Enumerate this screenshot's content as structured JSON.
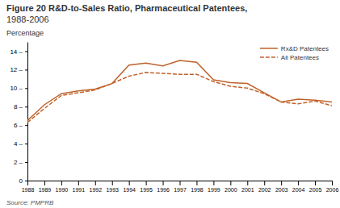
{
  "chart_data": {
    "type": "line",
    "title": "Figure 20 R&D-to-Sales Ratio, Pharmaceutical Patentees,",
    "subtitle": "1988-2006",
    "y_label": "Percentage",
    "annotations": [
      "Source: PMPRB"
    ],
    "x": [
      1988,
      1989,
      1990,
      1991,
      1992,
      1993,
      1994,
      1995,
      1996,
      1997,
      1998,
      1999,
      2000,
      2001,
      2002,
      2003,
      2004,
      2005,
      2006
    ],
    "series": [
      {
        "name": "Rx&D Patentees",
        "color": "#c0622a",
        "line_style": "solid",
        "values": [
          6.5,
          8.2,
          9.4,
          9.7,
          9.9,
          10.5,
          12.5,
          12.7,
          12.4,
          13.0,
          12.8,
          10.9,
          10.6,
          10.5,
          9.5,
          8.5,
          8.8,
          8.7,
          8.5
        ]
      },
      {
        "name": "All Patentees",
        "color": "#c0622a",
        "line_style": "dashed",
        "values": [
          6.3,
          7.8,
          9.2,
          9.5,
          9.8,
          10.5,
          11.3,
          11.7,
          11.6,
          11.5,
          11.5,
          10.7,
          10.2,
          10.0,
          9.4,
          8.5,
          8.3,
          8.6,
          8.1
        ]
      }
    ],
    "xlim": [
      1988,
      2006
    ],
    "xticks": [
      1988,
      1989,
      1990,
      1991,
      1992,
      1993,
      1994,
      1995,
      1996,
      1997,
      1998,
      1999,
      2000,
      2001,
      2002,
      2003,
      2004,
      2005,
      2006
    ],
    "ylim": [
      0,
      15
    ],
    "yticks": [
      0,
      {
        "value": 2,
        "label": "2 –"
      },
      {
        "value": 4,
        "label": "4 –"
      },
      {
        "value": 6,
        "label": "6 –"
      },
      {
        "value": 8,
        "label": "8 –"
      },
      {
        "value": 10,
        "label": "10 –"
      },
      {
        "value": 12,
        "label": "12 –"
      },
      {
        "value": 14,
        "label": "14 –"
      }
    ],
    "grid": false,
    "legend": "upper right"
  }
}
